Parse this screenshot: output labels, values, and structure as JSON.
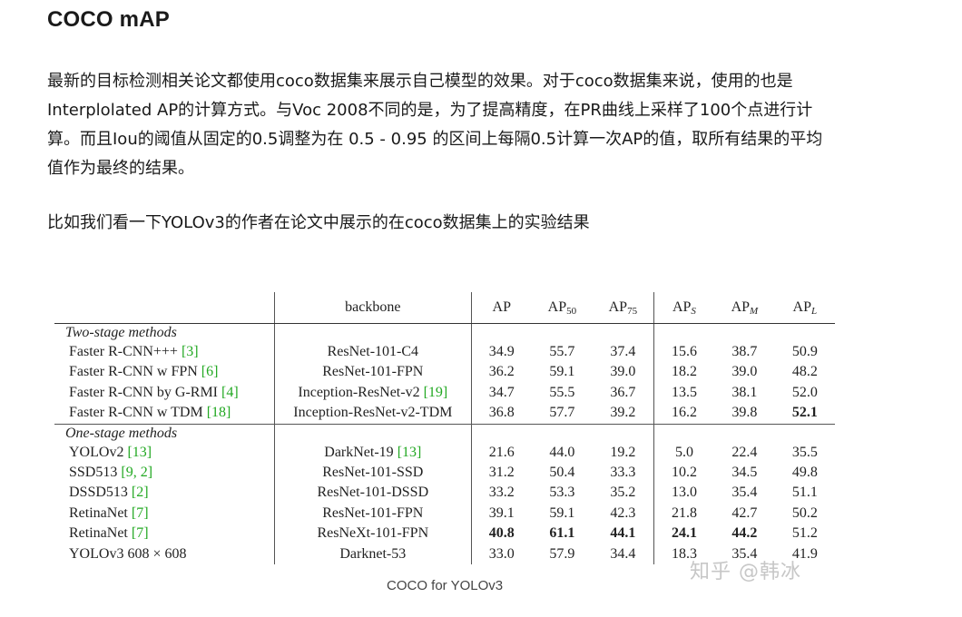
{
  "heading": "COCO mAP",
  "paragraph1": "最新的目标检测相关论文都使用coco数据集来展示自己模型的效果。对于coco数据集来说，使用的也是Interplolated AP的计算方式。与Voc 2008不同的是，为了提高精度，在PR曲线上采样了100个点进行计算。而且Iou的阈值从固定的0.5调整为在 0.5 - 0.95 的区间上每隔0.5计算一次AP的值，取所有结果的平均值作为最终的结果。",
  "paragraph2": "比如我们看一下YOLOv3的作者在论文中展示的在coco数据集上的实验结果",
  "table": {
    "header": {
      "backbone": "backbone",
      "ap": "AP",
      "ap50": "AP",
      "ap50_sub": "50",
      "ap75": "AP",
      "ap75_sub": "75",
      "aps": "AP",
      "aps_sub": "S",
      "apm": "AP",
      "apm_sub": "M",
      "apl": "AP",
      "apl_sub": "L"
    },
    "group1": "Two-stage methods",
    "group2": "One-stage methods",
    "rows": [
      {
        "method": "Faster R-CNN+++",
        "cite": "[3]",
        "backbone": "ResNet-101-C4",
        "backbone_cite": "",
        "ap": "34.9",
        "ap50": "55.7",
        "ap75": "37.4",
        "aps": "15.6",
        "apm": "38.7",
        "apl": "50.9"
      },
      {
        "method": "Faster R-CNN w FPN",
        "cite": "[6]",
        "backbone": "ResNet-101-FPN",
        "backbone_cite": "",
        "ap": "36.2",
        "ap50": "59.1",
        "ap75": "39.0",
        "aps": "18.2",
        "apm": "39.0",
        "apl": "48.2"
      },
      {
        "method": "Faster R-CNN by G-RMI",
        "cite": "[4]",
        "backbone": "Inception-ResNet-v2",
        "backbone_cite": "[19]",
        "ap": "34.7",
        "ap50": "55.5",
        "ap75": "36.7",
        "aps": "13.5",
        "apm": "38.1",
        "apl": "52.0"
      },
      {
        "method": "Faster R-CNN w TDM",
        "cite": "[18]",
        "backbone": "Inception-ResNet-v2-TDM",
        "backbone_cite": "",
        "ap": "36.8",
        "ap50": "57.7",
        "ap75": "39.2",
        "aps": "16.2",
        "apm": "39.8",
        "apl": "52.1"
      },
      {
        "method": "YOLOv2",
        "cite": "[13]",
        "backbone": "DarkNet-19",
        "backbone_cite": "[13]",
        "ap": "21.6",
        "ap50": "44.0",
        "ap75": "19.2",
        "aps": "5.0",
        "apm": "22.4",
        "apl": "35.5"
      },
      {
        "method": "SSD513",
        "cite": "[9, 2]",
        "backbone": "ResNet-101-SSD",
        "backbone_cite": "",
        "ap": "31.2",
        "ap50": "50.4",
        "ap75": "33.3",
        "aps": "10.2",
        "apm": "34.5",
        "apl": "49.8"
      },
      {
        "method": "DSSD513",
        "cite": "[2]",
        "backbone": "ResNet-101-DSSD",
        "backbone_cite": "",
        "ap": "33.2",
        "ap50": "53.3",
        "ap75": "35.2",
        "aps": "13.0",
        "apm": "35.4",
        "apl": "51.1"
      },
      {
        "method": "RetinaNet",
        "cite": "[7]",
        "backbone": "ResNet-101-FPN",
        "backbone_cite": "",
        "ap": "39.1",
        "ap50": "59.1",
        "ap75": "42.3",
        "aps": "21.8",
        "apm": "42.7",
        "apl": "50.2"
      },
      {
        "method": "RetinaNet",
        "cite": "[7]",
        "backbone": "ResNeXt-101-FPN",
        "backbone_cite": "",
        "ap": "40.8",
        "ap50": "61.1",
        "ap75": "44.1",
        "aps": "24.1",
        "apm": "44.2",
        "apl": "51.2"
      },
      {
        "method": "YOLOv3 608 × 608",
        "cite": "",
        "backbone": "Darknet-53",
        "backbone_cite": "",
        "ap": "33.0",
        "ap50": "57.9",
        "ap75": "34.4",
        "aps": "18.3",
        "apm": "35.4",
        "apl": "41.9"
      }
    ]
  },
  "caption": "COCO for YOLOv3",
  "watermark": "知乎 @韩冰"
}
